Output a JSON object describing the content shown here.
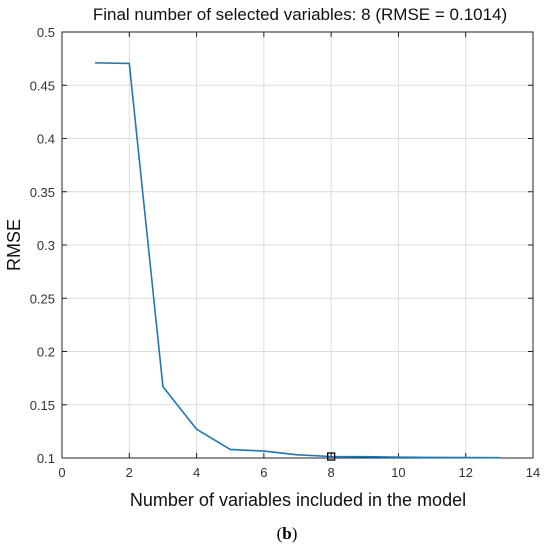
{
  "figure": {
    "caption_open": "(",
    "caption_letter": "b",
    "caption_close": ")"
  },
  "chart_data": {
    "type": "line",
    "title": "Final number of selected variables: 8  (RMSE = 0.1014)",
    "xlabel": "Number of variables included in the model",
    "ylabel": "RMSE",
    "xlim": [
      0,
      14
    ],
    "ylim": [
      0.1,
      0.5
    ],
    "xticks": [
      0,
      2,
      4,
      6,
      8,
      10,
      12,
      14
    ],
    "yticks": [
      0.1,
      0.15,
      0.2,
      0.25,
      0.3,
      0.35,
      0.4,
      0.45,
      0.5
    ],
    "xtick_labels": [
      "0",
      "2",
      "4",
      "6",
      "8",
      "10",
      "12",
      "14"
    ],
    "ytick_labels": [
      "0.1",
      "0.15",
      "0.2",
      "0.25",
      "0.3",
      "0.35",
      "0.4",
      "0.45",
      "0.5"
    ],
    "grid": true,
    "series": [
      {
        "color": "#1f77b4",
        "x": [
          1,
          2,
          3,
          4,
          5,
          6,
          7,
          8,
          9,
          10,
          11,
          12,
          13
        ],
        "values": [
          0.471,
          0.4705,
          0.167,
          0.127,
          0.108,
          0.1065,
          0.103,
          0.1014,
          0.1012,
          0.1008,
          0.1005,
          0.1004,
          0.1003
        ]
      }
    ],
    "highlight": {
      "x": 8,
      "y": 0.1014,
      "marker": "square"
    }
  }
}
